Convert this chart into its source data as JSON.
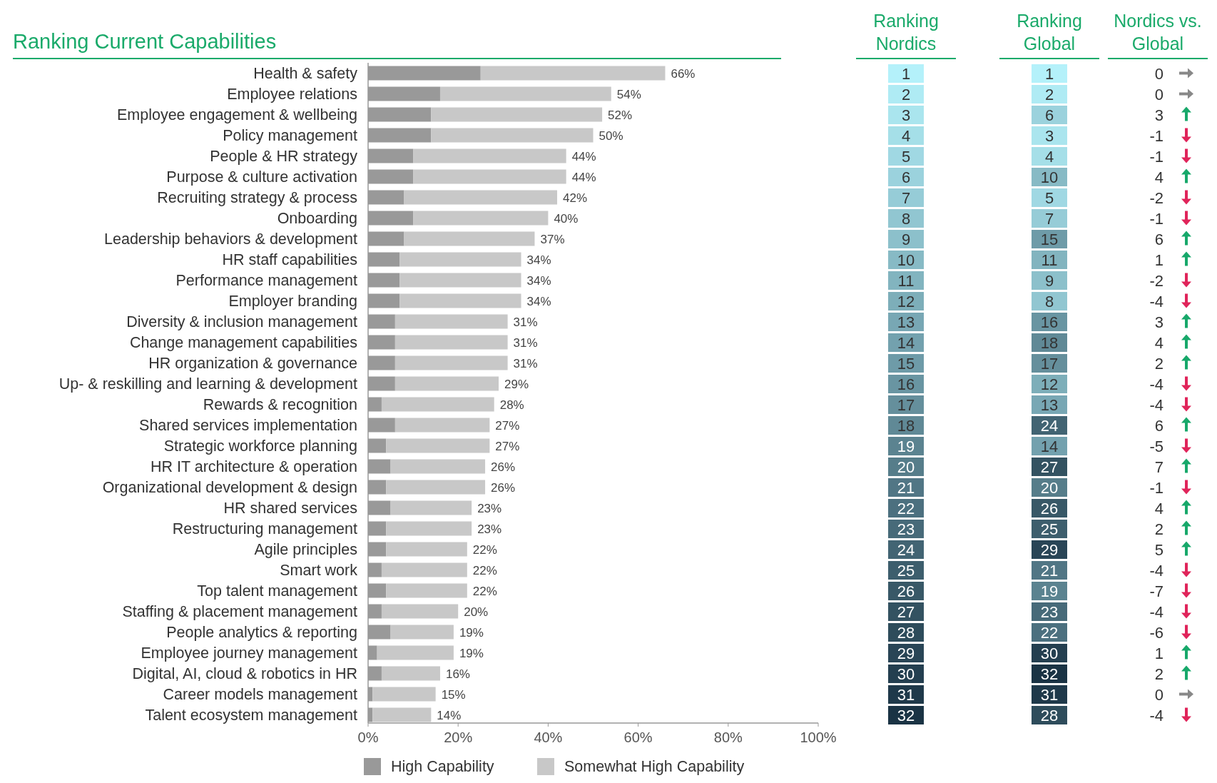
{
  "chart_data": [
    {
      "type": "bar",
      "title": "Ranking Current Capabilities",
      "orientation": "horizontal",
      "stacked": true,
      "categories": [
        "Health & safety",
        "Employee relations",
        "Employee engagement & wellbeing",
        "Policy management",
        "People & HR strategy",
        "Purpose & culture activation",
        "Recruiting strategy & process",
        "Onboarding",
        "Leadership behaviors & development",
        "HR staff capabilities",
        "Performance management",
        "Employer branding",
        "Diversity & inclusion management",
        "Change management capabilities",
        "HR organization & governance",
        "Up- & reskilling and learning & development",
        "Rewards & recognition",
        "Shared services implementation",
        "Strategic workforce planning",
        "HR IT architecture & operation",
        "Organizational development & design",
        "HR shared services",
        "Restructuring management",
        "Agile principles",
        "Smart work",
        "Top talent management",
        "Staffing & placement management",
        "People analytics & reporting",
        "Employee journey management",
        "Digital, AI, cloud & robotics in HR",
        "Career models management",
        "Talent ecosystem management"
      ],
      "series": [
        {
          "name": "High Capability",
          "color": "#999999",
          "values": [
            25,
            16,
            14,
            14,
            10,
            10,
            8,
            10,
            8,
            7,
            7,
            7,
            6,
            6,
            6,
            6,
            3,
            6,
            4,
            5,
            4,
            5,
            4,
            4,
            3,
            4,
            3,
            5,
            2,
            3,
            1,
            1
          ]
        },
        {
          "name": "Somewhat High Capability",
          "color": "#c8c8c8",
          "values": [
            41,
            38,
            38,
            36,
            34,
            34,
            34,
            30,
            29,
            27,
            27,
            27,
            25,
            25,
            25,
            23,
            25,
            21,
            23,
            21,
            22,
            18,
            19,
            18,
            19,
            18,
            17,
            14,
            17,
            13,
            14,
            13
          ]
        }
      ],
      "totals": [
        "66%",
        "54%",
        "52%",
        "50%",
        "44%",
        "44%",
        "42%",
        "40%",
        "37%",
        "34%",
        "34%",
        "34%",
        "31%",
        "31%",
        "31%",
        "29%",
        "28%",
        "27%",
        "27%",
        "26%",
        "26%",
        "23%",
        "23%",
        "22%",
        "22%",
        "22%",
        "20%",
        "19%",
        "19%",
        "16%",
        "15%",
        "14%"
      ],
      "xlim": [
        0,
        100
      ],
      "xticks": [
        {
          "value": 0,
          "label": "0%"
        },
        {
          "value": 20,
          "label": "20%"
        },
        {
          "value": 40,
          "label": "40%"
        },
        {
          "value": 60,
          "label": "60%"
        },
        {
          "value": 80,
          "label": "80%"
        },
        {
          "value": 100,
          "label": "100%"
        }
      ],
      "legend": "bottom"
    },
    {
      "type": "heatmap",
      "categories": [
        "Ranking Nordics",
        "Ranking Global",
        "Nordics vs. Global"
      ],
      "y_categories": [
        null,
        null,
        null,
        null,
        null,
        null,
        null,
        null,
        null,
        null,
        null,
        null,
        null,
        null,
        null,
        null,
        null,
        null,
        null,
        null,
        null,
        null,
        null,
        null,
        null,
        null,
        null,
        null,
        null,
        null,
        null,
        null
      ],
      "cells": [
        [
          1,
          1,
          null
        ],
        [
          2,
          2,
          null
        ],
        [
          3,
          6,
          null
        ],
        [
          4,
          3,
          null
        ],
        [
          5,
          4,
          null
        ],
        [
          6,
          10,
          null
        ],
        [
          7,
          5,
          null
        ],
        [
          8,
          7,
          null
        ],
        [
          9,
          15,
          null
        ],
        [
          10,
          11,
          null
        ],
        [
          11,
          9,
          null
        ],
        [
          12,
          8,
          null
        ],
        [
          13,
          16,
          null
        ],
        [
          14,
          18,
          null
        ],
        [
          15,
          17,
          null
        ],
        [
          16,
          12,
          null
        ],
        [
          17,
          13,
          null
        ],
        [
          18,
          24,
          null
        ],
        [
          19,
          14,
          null
        ],
        [
          20,
          27,
          null
        ],
        [
          21,
          20,
          null
        ],
        [
          22,
          26,
          null
        ],
        [
          23,
          25,
          null
        ],
        [
          24,
          29,
          null
        ],
        [
          25,
          21,
          null
        ],
        [
          26,
          19,
          null
        ],
        [
          27,
          23,
          null
        ],
        [
          28,
          22,
          null
        ],
        [
          29,
          30,
          null
        ],
        [
          30,
          32,
          null
        ],
        [
          31,
          31,
          null
        ],
        [
          32,
          28,
          null
        ]
      ],
      "cell_labels": [
        [
          "1",
          "1",
          "0"
        ],
        [
          "2",
          "2",
          "0"
        ],
        [
          "3",
          "6",
          "3"
        ],
        [
          "4",
          "3",
          "-1"
        ],
        [
          "5",
          "4",
          "-1"
        ],
        [
          "6",
          "10",
          "4"
        ],
        [
          "7",
          "5",
          "-2"
        ],
        [
          "8",
          "7",
          "-1"
        ],
        [
          "9",
          "15",
          "6"
        ],
        [
          "10",
          "11",
          "1"
        ],
        [
          "11",
          "9",
          "-2"
        ],
        [
          "12",
          "8",
          "-4"
        ],
        [
          "13",
          "16",
          "3"
        ],
        [
          "14",
          "18",
          "4"
        ],
        [
          "15",
          "17",
          "2"
        ],
        [
          "16",
          "12",
          "-4"
        ],
        [
          "17",
          "13",
          "-4"
        ],
        [
          "18",
          "24",
          "6"
        ],
        [
          "19",
          "14",
          "-5"
        ],
        [
          "20",
          "27",
          "7"
        ],
        [
          "21",
          "20",
          "-1"
        ],
        [
          "22",
          "26",
          "4"
        ],
        [
          "23",
          "25",
          "2"
        ],
        [
          "24",
          "29",
          "5"
        ],
        [
          "25",
          "21",
          "-4"
        ],
        [
          "26",
          "19",
          "-7"
        ],
        [
          "27",
          "23",
          "-4"
        ],
        [
          "28",
          "22",
          "-6"
        ],
        [
          "29",
          "30",
          "1"
        ],
        [
          "30",
          "32",
          "2"
        ],
        [
          "31",
          "31",
          "0"
        ],
        [
          "32",
          "28",
          "-4"
        ]
      ],
      "data_labels": true
    }
  ]
}
